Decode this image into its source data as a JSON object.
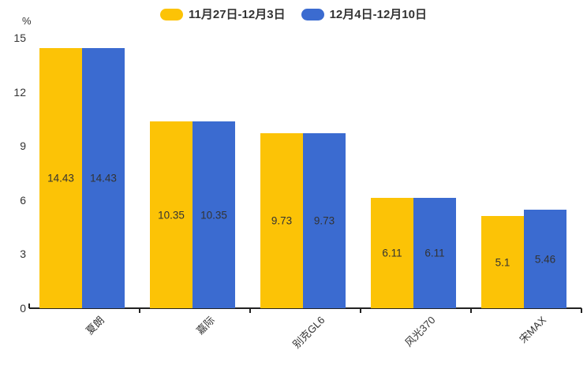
{
  "chart": {
    "unit_label": "%"
  },
  "chart_data": {
    "type": "bar",
    "title": "",
    "categories": [
      "夏朗",
      "嘉际",
      "别克GL6",
      "风光370",
      "宋MAX"
    ],
    "series": [
      {
        "name": "11月27日-12月3日",
        "color": "#FCC306",
        "values": [
          14.43,
          10.35,
          9.73,
          6.11,
          5.1
        ]
      },
      {
        "name": "12月4日-12月10日",
        "color": "#3B6BD0",
        "values": [
          14.43,
          10.35,
          9.73,
          6.11,
          5.46
        ]
      }
    ],
    "bar_value_labels": [
      [
        "14.43",
        "10.35",
        "9.73",
        "6.11",
        "5.1"
      ],
      [
        "14.43",
        "10.35",
        "9.73",
        "6.11",
        "5.46"
      ]
    ],
    "xlabel": "",
    "ylabel": "%",
    "ylim": [
      0,
      15
    ],
    "yticks": [
      0,
      3,
      6,
      9,
      12,
      15
    ],
    "grid": false,
    "legend_position": "top",
    "x_label_rotation": -45
  }
}
